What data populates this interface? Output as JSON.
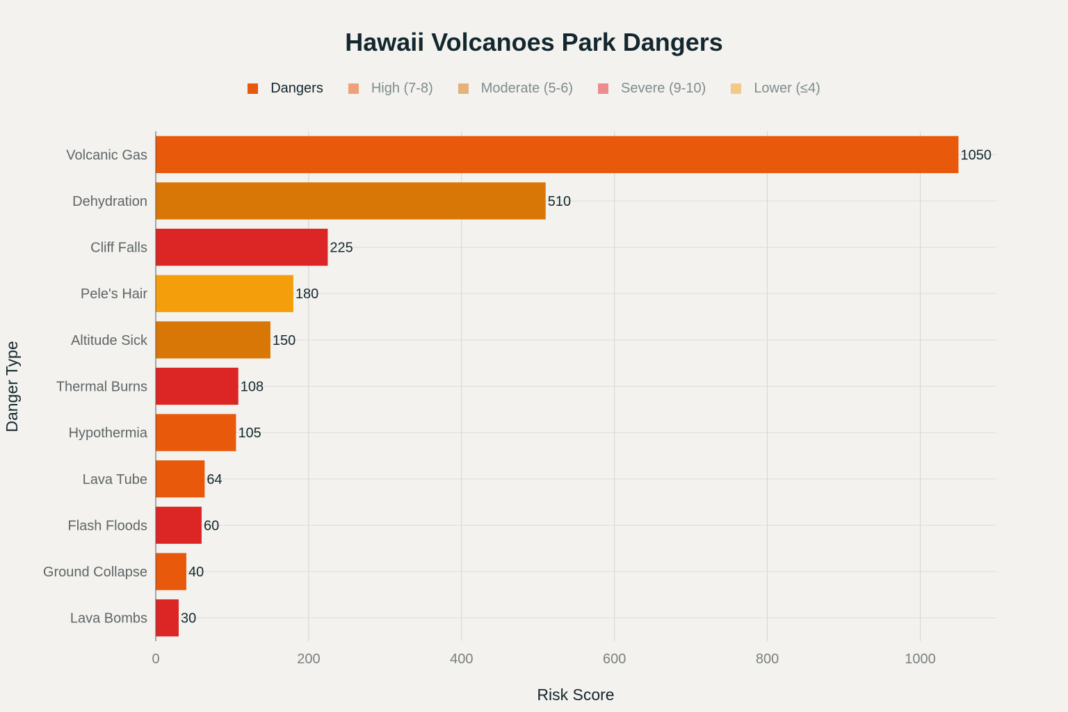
{
  "chart_data": {
    "type": "bar",
    "orientation": "horizontal",
    "title": "Hawaii Volcanoes Park Dangers",
    "xlabel": "Risk Score",
    "ylabel": "Danger Type",
    "xlim": [
      0,
      1100
    ],
    "x_ticks": [
      0,
      200,
      400,
      600,
      800,
      1000
    ],
    "grid": true,
    "legend_position": "top-center",
    "legend": [
      {
        "label": "Dangers",
        "color": "#e8590c",
        "active": true
      },
      {
        "label": "High (7-8)",
        "color": "#efa07a",
        "active": false
      },
      {
        "label": "Moderate (5-6)",
        "color": "#e6b27c",
        "active": false
      },
      {
        "label": "Severe (9-10)",
        "color": "#ec8c8c",
        "active": false
      },
      {
        "label": "Lower (≤4)",
        "color": "#f3c98a",
        "active": false
      }
    ],
    "categories": [
      "Volcanic Gas",
      "Dehydration",
      "Cliff Falls",
      "Pele's Hair",
      "Altitude Sick",
      "Thermal Burns",
      "Hypothermia",
      "Lava Tube",
      "Flash Floods",
      "Ground Collapse",
      "Lava Bombs"
    ],
    "values": [
      1050,
      510,
      225,
      180,
      150,
      108,
      105,
      64,
      60,
      40,
      30
    ],
    "bar_colors": [
      "#e8590c",
      "#d97706",
      "#dc2626",
      "#f59e0b",
      "#d97706",
      "#dc2626",
      "#e8590c",
      "#e8590c",
      "#dc2626",
      "#e8590c",
      "#dc2626"
    ]
  }
}
